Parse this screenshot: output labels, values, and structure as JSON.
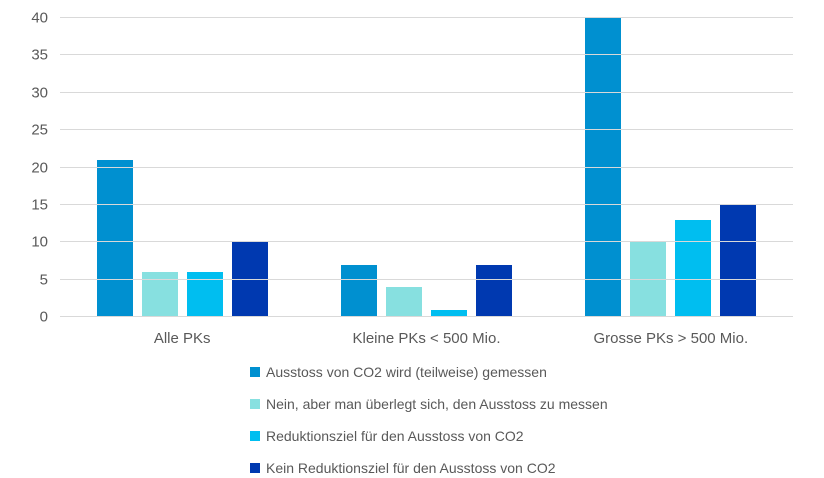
{
  "chart_data": {
    "type": "bar",
    "title": "",
    "xlabel": "",
    "ylabel": "",
    "categories": [
      "Alle PKs",
      "Kleine PKs < 500 Mio.",
      "Grosse PKs > 500 Mio."
    ],
    "series": [
      {
        "name": "Ausstoss von CO2 wird (teilweise) gemessen",
        "color": "#0090D0",
        "values": [
          21,
          7,
          40
        ]
      },
      {
        "name": "Nein, aber man überlegt sich, den Ausstoss zu messen",
        "color": "#87E0E0",
        "values": [
          6,
          4,
          10
        ]
      },
      {
        "name": "Reduktionsziel für den Ausstoss von CO2",
        "color": "#00BEF0",
        "values": [
          6,
          1,
          13
        ]
      },
      {
        "name": "Kein Reduktionsziel für den Ausstoss von CO2",
        "color": "#0039B0",
        "values": [
          10,
          7,
          15
        ]
      }
    ],
    "y_ticks": [
      0,
      5,
      10,
      15,
      20,
      25,
      30,
      35,
      40
    ],
    "ylim": [
      0,
      40
    ],
    "grid": true,
    "legend_position": "bottom"
  },
  "colors": {
    "gridline": "#D9D9D9",
    "axis_text": "#595959",
    "background": "#FFFFFF"
  }
}
